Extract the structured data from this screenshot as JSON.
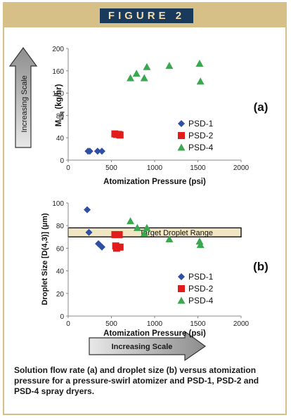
{
  "header": {
    "figure_label": "FIGURE 2"
  },
  "chart_data": [
    {
      "type": "scatter",
      "panel_label": "(a)",
      "xlabel": "Atomization Pressure (psi)",
      "ylabel": "M",
      "ylabel_sub": "Liq",
      "ylabel_unit": " (kg/hr)",
      "xlim": [
        0,
        2000
      ],
      "ylim": [
        0,
        200
      ],
      "xticks": [
        "0",
        "500",
        "1000",
        "1500",
        "2000"
      ],
      "yticks": [
        "0",
        "40",
        "80",
        "120",
        "160",
        "200"
      ],
      "grid": false,
      "legend_position": "right",
      "series": [
        {
          "name": "PSD-1",
          "marker": "diamond",
          "color": "#2e4fa3",
          "points": [
            [
              230,
              16
            ],
            [
              250,
              16
            ],
            [
              340,
              16
            ],
            [
              390,
              16
            ]
          ]
        },
        {
          "name": "PSD-2",
          "marker": "square",
          "color": "#e21b1b",
          "points": [
            [
              540,
              47
            ],
            [
              560,
              46
            ],
            [
              585,
              46
            ],
            [
              600,
              45
            ]
          ]
        },
        {
          "name": "PSD-4",
          "marker": "triangle",
          "color": "#3aa84f",
          "points": [
            [
              720,
              147
            ],
            [
              790,
              155
            ],
            [
              880,
              147
            ],
            [
              910,
              167
            ],
            [
              1170,
              169
            ],
            [
              1520,
              173
            ],
            [
              1530,
              141
            ]
          ]
        }
      ]
    },
    {
      "type": "scatter",
      "panel_label": "(b)",
      "xlabel": "Atomization Pressure (psi)",
      "ylabel": "Droplet Size [D(4,3)] (µm)",
      "xlim": [
        0,
        2000
      ],
      "ylim": [
        0,
        100
      ],
      "xticks": [
        "0",
        "500",
        "1000",
        "1500",
        "2000"
      ],
      "yticks": [
        "0",
        "20",
        "40",
        "60",
        "80",
        "100"
      ],
      "grid": false,
      "legend_position": "right",
      "target_band": {
        "label": "Target Droplet Range",
        "ymin": 70,
        "ymax": 78
      },
      "series": [
        {
          "name": "PSD-1",
          "marker": "diamond",
          "color": "#2e4fa3",
          "points": [
            [
              220,
              94
            ],
            [
              240,
              74
            ],
            [
              350,
              64
            ],
            [
              390,
              61
            ]
          ]
        },
        {
          "name": "PSD-2",
          "marker": "square",
          "color": "#e21b1b",
          "points": [
            [
              540,
              72
            ],
            [
              590,
              72
            ],
            [
              550,
              62
            ],
            [
              600,
              61
            ],
            [
              560,
              60
            ]
          ]
        },
        {
          "name": "PSD-4",
          "marker": "triangle",
          "color": "#3aa84f",
          "points": [
            [
              720,
              84
            ],
            [
              800,
              78
            ],
            [
              880,
              73
            ],
            [
              910,
              78
            ],
            [
              1170,
              68
            ],
            [
              1520,
              66
            ],
            [
              1530,
              63
            ]
          ]
        }
      ]
    }
  ],
  "arrows": {
    "vertical_label": "Increasing Scale",
    "horizontal_label": "Increasing Scale"
  },
  "caption": "Solution flow rate (a) and droplet size (b) versus atomization pressure for a pressure-swirl atomizer and PSD-1, PSD-2 and PSD-4 spray dryers.",
  "colors": {
    "frame": "#d7bf88",
    "banner_bg": "#1a3a5c",
    "banner_text": "#f3dcae",
    "band_fill": "#f1e6c3",
    "arrow_fill": "#b9b9b9"
  }
}
